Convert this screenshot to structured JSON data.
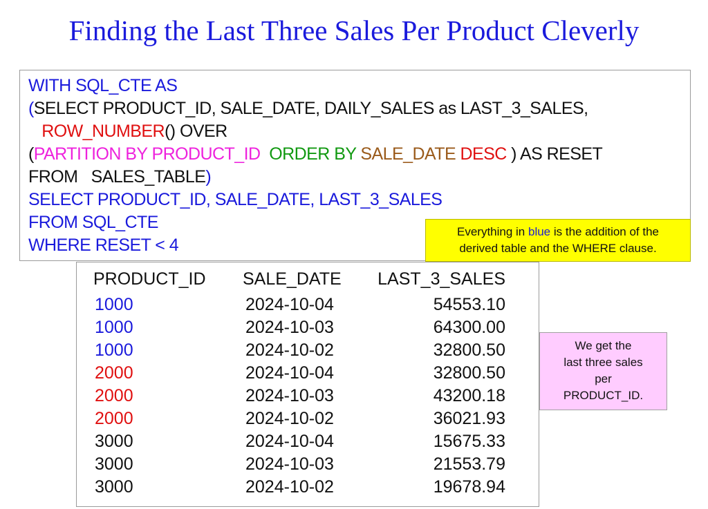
{
  "title": "Finding the Last Three Sales Per Product Cleverly",
  "colors": {
    "blue": "#1a1adc",
    "black": "#111111",
    "red": "#e01010",
    "magenta": "#ee22dd",
    "green": "#119911",
    "brown": "#9a5a1a",
    "yellow_note": "#ffff00",
    "pink_note": "#ffccff"
  },
  "code_lines": [
    [
      {
        "text": "WITH SQL_CTE AS",
        "color": "#1a1adc"
      }
    ],
    [
      {
        "text": "(",
        "color": "#1a1adc"
      },
      {
        "text": "SELECT PRODUCT_ID, SALE_DATE, DAILY_SALES as LAST_3_SALES,",
        "color": "#111111"
      }
    ],
    [
      {
        "text": "   ",
        "color": "#111111"
      },
      {
        "text": "ROW_NUMBER",
        "color": "#e01010"
      },
      {
        "text": "() OVER",
        "color": "#111111"
      }
    ],
    [
      {
        "text": "(",
        "color": "#111111"
      },
      {
        "text": "PARTITION BY PRODUCT_ID  ",
        "color": "#ee22dd"
      },
      {
        "text": "ORDER BY ",
        "color": "#119911"
      },
      {
        "text": "SALE_DATE ",
        "color": "#9a5a1a"
      },
      {
        "text": "DESC ",
        "color": "#e01010"
      },
      {
        "text": ") AS RESET",
        "color": "#111111"
      }
    ],
    [
      {
        "text": "FROM   SALES_TABLE",
        "color": "#111111"
      },
      {
        "text": ")",
        "color": "#1a1adc"
      }
    ],
    [
      {
        "text": "SELECT PRODUCT_ID, SALE_DATE, LAST_3_SALES",
        "color": "#1a1adc"
      }
    ],
    [
      {
        "text": "FROM SQL_CTE",
        "color": "#1a1adc"
      }
    ],
    [
      {
        "text": "WHERE RESET < 4",
        "color": "#1a1adc"
      }
    ]
  ],
  "note_yellow": {
    "part1": "Everything in ",
    "blue_word": "blue",
    "part2": " is the addition of the",
    "line2": "derived table and the WHERE clause."
  },
  "note_pink": {
    "line1": "We get the",
    "line2": "last three sales",
    "line3": "per",
    "line4": "PRODUCT_ID."
  },
  "table": {
    "headers": [
      "PRODUCT_ID",
      "SALE_DATE",
      "LAST_3_SALES"
    ],
    "rows": [
      {
        "product_id": "1000",
        "sale_date": "2024-10-04",
        "sales": "54553.10",
        "color": "#1a1adc"
      },
      {
        "product_id": "1000",
        "sale_date": "2024-10-03",
        "sales": "64300.00",
        "color": "#1a1adc"
      },
      {
        "product_id": "1000",
        "sale_date": "2024-10-02",
        "sales": "32800.50",
        "color": "#1a1adc"
      },
      {
        "product_id": "2000",
        "sale_date": "2024-10-04",
        "sales": "32800.50",
        "color": "#e01010"
      },
      {
        "product_id": "2000",
        "sale_date": "2024-10-03",
        "sales": "43200.18",
        "color": "#e01010"
      },
      {
        "product_id": "2000",
        "sale_date": "2024-10-02",
        "sales": "36021.93",
        "color": "#e01010"
      },
      {
        "product_id": "3000",
        "sale_date": "2024-10-04",
        "sales": "15675.33",
        "color": "#111111"
      },
      {
        "product_id": "3000",
        "sale_date": "2024-10-03",
        "sales": "21553.79",
        "color": "#111111"
      },
      {
        "product_id": "3000",
        "sale_date": "2024-10-02",
        "sales": "19678.94",
        "color": "#111111"
      }
    ]
  }
}
